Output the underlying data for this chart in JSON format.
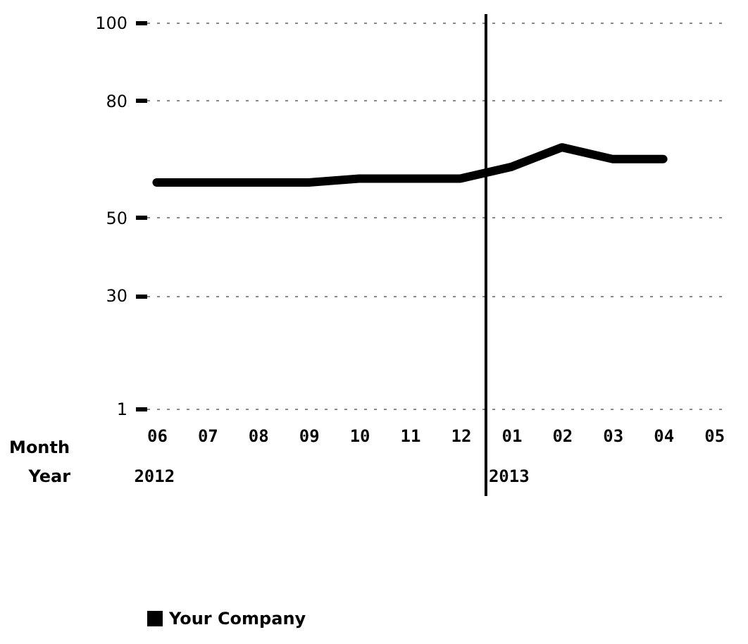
{
  "chart_data": {
    "type": "line",
    "categories": [
      "06",
      "07",
      "08",
      "09",
      "10",
      "11",
      "12",
      "01",
      "02",
      "03",
      "04",
      "05"
    ],
    "series": [
      {
        "name": "Your Company",
        "color": "#000000",
        "values": [
          59,
          59,
          59,
          59,
          60,
          60,
          60,
          63,
          68,
          65,
          65,
          null
        ]
      }
    ],
    "xlabel": "Month",
    "annotations": [
      "Year",
      "2012",
      "2013"
    ],
    "ref_lines": [
      {
        "axis": "x",
        "value": "01",
        "color": "#000000"
      }
    ],
    "ylim": [
      1,
      100
    ],
    "yticks": [
      1,
      30,
      50,
      80,
      100
    ],
    "grid": "y",
    "legend": "bottom",
    "marker": "none",
    "line_style": "solid"
  }
}
